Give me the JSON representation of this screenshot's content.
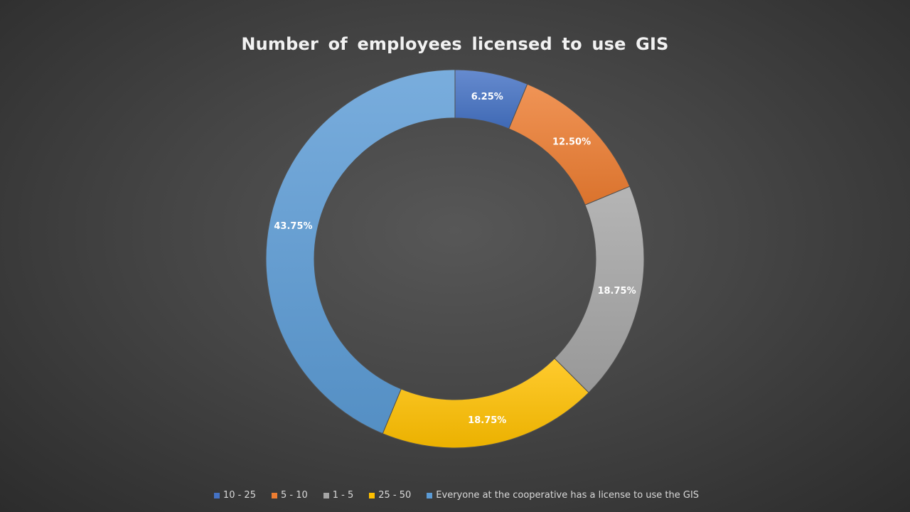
{
  "chart_data": {
    "type": "pie",
    "variant": "donut",
    "title": "Number of employees licensed to use GIS",
    "categories": [
      "10 - 25",
      "5 - 10",
      "1 - 5",
      "25 - 50",
      "Everyone at the cooperative has a license to use the GIS"
    ],
    "values": [
      6.25,
      12.5,
      18.75,
      18.75,
      43.75
    ],
    "data_labels": [
      "6.25%",
      "12.50%",
      "18.75%",
      "18.75%",
      "43.75%"
    ],
    "colors": [
      "#4472c4",
      "#ed7d31",
      "#a5a5a5",
      "#ffc000",
      "#5b9bd5"
    ],
    "legend_position": "bottom"
  }
}
